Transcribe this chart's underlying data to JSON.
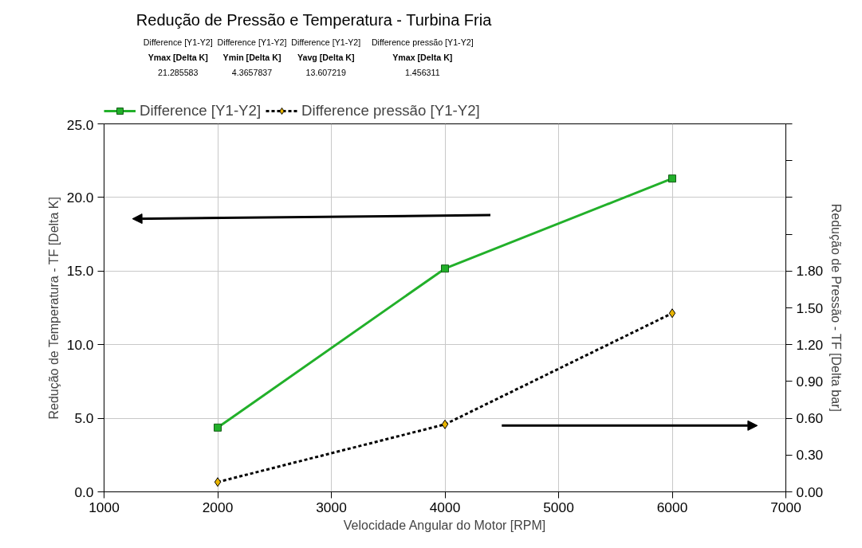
{
  "chart_data": {
    "type": "line",
    "title": "Redução de Pressão e Temperatura - Turbina Fria",
    "xlabel": "Velocidade Angular do Motor [RPM]",
    "ylabel": "Redução de Temperatura - TF [Delta K]",
    "y2label": "Redução de Pressão - TF [Delta bar]",
    "x": [
      2000,
      4000,
      6000
    ],
    "series": [
      {
        "name": "Difference [Y1-Y2]",
        "color": "#22b02a",
        "values": [
          4.3657837,
          15.17,
          21.285583
        ],
        "marker": "square",
        "line_style": "solid"
      },
      {
        "name": "Difference pressão [Y1-Y2]",
        "color": "#000000",
        "values": [
          0.08,
          0.55,
          1.456311
        ],
        "marker": "diamond",
        "line_style": "dashed",
        "axis": "y2"
      }
    ],
    "xlim": [
      1000,
      7000
    ],
    "xticks": [
      1000,
      2000,
      3000,
      4000,
      5000,
      6000,
      7000
    ],
    "ylim": [
      0,
      25
    ],
    "yticks": [
      {
        "value": 0,
        "label": "0.0"
      },
      {
        "value": 5,
        "label": "5.0"
      },
      {
        "value": 10,
        "label": "10.0"
      },
      {
        "value": 15,
        "label": "15.0"
      },
      {
        "value": 20,
        "label": "20.0"
      },
      {
        "value": 25,
        "label": "25.0"
      }
    ],
    "y2lim": [
      0,
      3.0
    ],
    "y2ticks": [
      {
        "value": 0,
        "label": "0.00"
      },
      {
        "value": 0.3,
        "label": "0.30"
      },
      {
        "value": 0.6,
        "label": "0.60"
      },
      {
        "value": 0.9,
        "label": "0.90"
      },
      {
        "value": 1.2,
        "label": "1.20"
      },
      {
        "value": 1.5,
        "label": "1.50"
      },
      {
        "value": 1.8,
        "label": "1.80"
      },
      {
        "value": 2.1,
        "label": null
      },
      {
        "value": 2.4,
        "label": null
      },
      {
        "value": 2.7,
        "label": null
      },
      {
        "value": 3.0,
        "label": null
      }
    ],
    "grid": true,
    "legend": "top left",
    "annotations": [
      "Difference [Y1-Y2]",
      "Ymax [Delta K]",
      "21.285583",
      "Difference [Y1-Y2]",
      "Ymin [Delta K]",
      "4.3657837",
      "Difference [Y1-Y2]",
      "Yavg [Delta K]",
      "13.607219",
      "Difference pressão [Y1-Y2]",
      "Ymax [Delta K]",
      "1.456311"
    ]
  }
}
